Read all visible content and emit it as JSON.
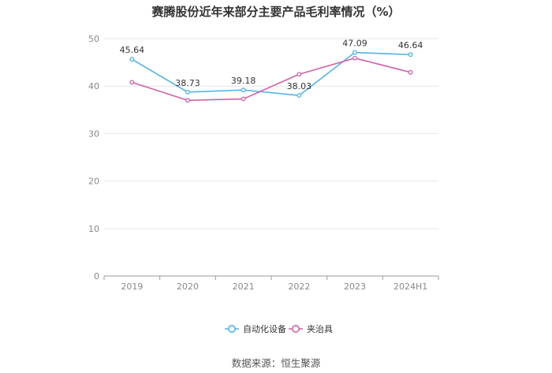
{
  "title": "赛腾股份近年来部分主要产品毛利率情况（%）",
  "source": "数据来源：恒生聚源",
  "chart_data": {
    "type": "line",
    "title": "赛腾股份近年来部分主要产品毛利率情况（%）",
    "categories": [
      "2019",
      "2020",
      "2021",
      "2022",
      "2023",
      "2024H1"
    ],
    "ylim": [
      0,
      50
    ],
    "yticks": [
      0,
      10,
      20,
      30,
      40,
      50
    ],
    "grid": true,
    "legend_position": "bottom",
    "series": [
      {
        "name": "自动化设备",
        "color": "#4fb3ea",
        "values": [
          45.64,
          38.73,
          39.18,
          38.03,
          47.09,
          46.64
        ],
        "show_labels": true
      },
      {
        "name": "夹治具",
        "color": "#d260a8",
        "values": [
          40.8,
          37.0,
          37.3,
          42.5,
          45.9,
          42.9
        ],
        "show_labels": false
      }
    ]
  }
}
